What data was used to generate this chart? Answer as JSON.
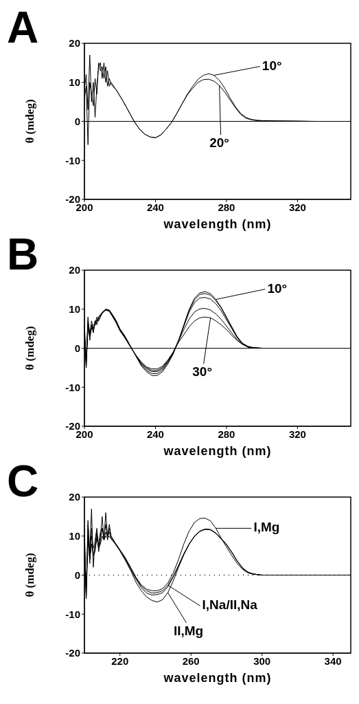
{
  "chart_data": [
    {
      "type": "line",
      "title": "A",
      "xlabel": "wavelength (nm)",
      "ylabel": "θ (mdeg)",
      "xlim": [
        200,
        350
      ],
      "xticks": [
        200,
        240,
        280,
        320
      ],
      "ylim": [
        -20,
        20
      ],
      "yticks": [
        -20,
        -10,
        0,
        10,
        20
      ],
      "x": [
        200,
        201,
        202,
        203,
        204,
        205,
        206,
        207,
        208,
        209,
        210,
        211,
        212,
        213,
        214,
        215,
        218,
        220,
        222,
        225,
        228,
        231,
        234,
        237,
        240,
        243,
        246,
        249,
        252,
        255,
        258,
        261,
        264,
        267,
        270,
        273,
        276,
        279,
        282,
        285,
        288,
        291,
        294,
        297,
        300,
        310,
        320,
        330,
        340,
        350
      ],
      "series": [
        {
          "color": "#000000",
          "values": [
            8,
            12,
            3,
            17,
            5,
            10,
            1,
            9,
            14,
            15,
            11,
            15,
            10,
            13,
            9,
            10,
            8,
            6.5,
            5,
            2.5,
            0,
            -2,
            -3.3,
            -4,
            -4.2,
            -3.5,
            -2,
            -0.3,
            2,
            4.5,
            7,
            9,
            10.8,
            11.8,
            12.2,
            11.8,
            10.5,
            8.5,
            6,
            3.8,
            2,
            1,
            0.5,
            0.3,
            0.2,
            0.1,
            0.1,
            0,
            0,
            0
          ]
        },
        {
          "color": "#000000",
          "values": [
            6,
            9,
            -6,
            10,
            7,
            4,
            11,
            7,
            15,
            13,
            14,
            11,
            14,
            9,
            11,
            9.5,
            8,
            6.5,
            5,
            2.5,
            0,
            -2,
            -3.3,
            -4,
            -4.2,
            -3.5,
            -2,
            -0.3,
            2,
            4.5,
            6.8,
            8.5,
            10,
            10.7,
            10.8,
            10.3,
            9.2,
            7.5,
            5.5,
            3.5,
            1.8,
            0.8,
            0.4,
            0.2,
            0.1,
            0.1,
            0,
            0,
            0,
            0
          ]
        }
      ],
      "ref_lines": [
        {
          "axis": "y",
          "value": 0,
          "line_style": "solid",
          "color": "#000000"
        }
      ],
      "annotations": [
        {
          "text": "10°",
          "x": 273,
          "y": 11.8
        },
        {
          "text": "20°",
          "x": 276,
          "y": 9.2
        }
      ]
    },
    {
      "type": "line",
      "title": "B",
      "xlabel": "wavelength (nm)",
      "ylabel": "θ (mdeg)",
      "xlim": [
        200,
        350
      ],
      "xticks": [
        200,
        240,
        280,
        320
      ],
      "ylim": [
        -20,
        20
      ],
      "yticks": [
        -20,
        -10,
        0,
        10,
        20
      ],
      "x": [
        200,
        201,
        202,
        203,
        204,
        205,
        206,
        207,
        208,
        210,
        212,
        214,
        216,
        218,
        220,
        223,
        226,
        229,
        232,
        235,
        238,
        241,
        244,
        247,
        250,
        253,
        256,
        259,
        262,
        265,
        268,
        271,
        274,
        277,
        280,
        283,
        286,
        289,
        292,
        295,
        300,
        310,
        320,
        330,
        340,
        350
      ],
      "series": [
        {
          "color": "#000000",
          "values": [
            5,
            -4,
            8,
            2,
            6,
            4,
            7,
            6,
            8,
            9,
            10,
            9.8,
            8.5,
            7,
            5,
            3,
            0.5,
            -2,
            -4.5,
            -6,
            -7,
            -7,
            -6,
            -4,
            -1.5,
            2,
            6,
            10,
            12.8,
            14.2,
            14.5,
            14,
            12.5,
            10.5,
            8,
            5.5,
            3,
            1.3,
            0.5,
            0.2,
            0,
            0,
            0,
            0,
            0,
            0
          ]
        },
        {
          "color": "#000000",
          "values": [
            3,
            -3,
            7,
            4,
            5,
            6,
            6,
            7,
            8,
            9.2,
            10,
            9.6,
            8.3,
            6.8,
            4.8,
            2.8,
            0.4,
            -2,
            -4.3,
            -5.7,
            -6.5,
            -6.5,
            -5.6,
            -3.7,
            -1.3,
            2,
            5.8,
            9.7,
            12.4,
            13.8,
            14,
            13.6,
            12.2,
            10.3,
            7.8,
            5.3,
            2.9,
            1.2,
            0.4,
            0.1,
            0,
            0,
            0,
            0,
            0,
            0
          ]
        },
        {
          "color": "#000000",
          "values": [
            4,
            -5,
            6,
            3,
            7,
            5,
            6,
            8,
            7,
            9,
            9.9,
            9.6,
            8.2,
            6.6,
            4.7,
            2.7,
            0.4,
            -1.9,
            -4,
            -5.3,
            -6,
            -6,
            -5.2,
            -3.4,
            -1.1,
            2,
            5.6,
            9.3,
            11.7,
            12.9,
            13,
            12.6,
            11.4,
            9.6,
            7.3,
            5,
            2.7,
            1.1,
            0.4,
            0.1,
            0,
            0,
            0,
            0,
            0,
            0
          ]
        },
        {
          "color": "#000000",
          "values": [
            6,
            -3,
            5,
            4,
            6,
            4,
            7,
            7,
            8,
            9,
            9.8,
            9.5,
            8,
            6.4,
            4.5,
            2.5,
            0.3,
            -1.8,
            -3.8,
            -5,
            -5.7,
            -5.7,
            -4.9,
            -3.2,
            -1,
            1.8,
            4.8,
            7.5,
            9.3,
            10.1,
            10.2,
            9.8,
            8.8,
            7.4,
            5.7,
            3.9,
            2.2,
            1,
            0.3,
            0.1,
            0,
            0,
            0,
            0,
            0,
            0
          ]
        },
        {
          "color": "#000000",
          "values": [
            4,
            -5,
            6,
            3,
            5,
            5,
            6,
            7,
            7.5,
            9,
            9.8,
            9.5,
            8,
            6.5,
            4.5,
            2.5,
            0.3,
            -1.8,
            -3.5,
            -4.8,
            -5.3,
            -5.3,
            -4.6,
            -3,
            -1,
            1.5,
            3.5,
            5.5,
            7,
            7.8,
            8,
            7.8,
            7,
            6,
            4.8,
            3.3,
            2,
            1,
            0.3,
            0,
            0,
            0,
            0,
            0,
            0,
            0
          ]
        }
      ],
      "ref_lines": [
        {
          "axis": "y",
          "value": 0,
          "line_style": "solid",
          "color": "#000000"
        }
      ],
      "annotations": [
        {
          "text": "10°",
          "x": 274,
          "y": 12.5
        },
        {
          "text": "30°",
          "x": 271,
          "y": 7.8
        }
      ]
    },
    {
      "type": "line",
      "title": "C",
      "xlabel": "wavelength (nm)",
      "ylabel": "θ (mdeg)",
      "xlim": [
        200,
        350
      ],
      "xticks": [
        220,
        260,
        300,
        340
      ],
      "ylim": [
        -20,
        20
      ],
      "yticks": [
        -20,
        -10,
        0,
        10,
        20
      ],
      "x": [
        200,
        201,
        202,
        203,
        204,
        205,
        206,
        207,
        208,
        209,
        210,
        211,
        212,
        213,
        214,
        215,
        217,
        220,
        223,
        226,
        229,
        232,
        235,
        238,
        241,
        244,
        247,
        250,
        253,
        256,
        259,
        262,
        265,
        268,
        271,
        274,
        277,
        280,
        283,
        286,
        289,
        292,
        295,
        298,
        300,
        310,
        320,
        330,
        340,
        350
      ],
      "series": [
        {
          "color": "#000000",
          "values": [
            12,
            -5,
            14,
            6,
            17,
            2,
            9,
            12,
            7,
            10,
            15,
            9,
            16,
            10,
            13,
            10,
            8.5,
            6.5,
            4.5,
            2,
            -0.5,
            -2.5,
            -3.6,
            -4,
            -4,
            -3.5,
            -2,
            0.5,
            4,
            8,
            11.3,
            13.5,
            14.5,
            14.6,
            13.9,
            12,
            9.5,
            7.2,
            5,
            3,
            1.5,
            0.6,
            0.2,
            0.1,
            0,
            0,
            0,
            0,
            0,
            0
          ]
        },
        {
          "color": "#000000",
          "values": [
            8,
            -3,
            10,
            4,
            12,
            5,
            7,
            9,
            8,
            11,
            12,
            9,
            11,
            10,
            11,
            9.5,
            8.3,
            6.3,
            4.2,
            1.8,
            -0.8,
            -2.8,
            -4,
            -4.6,
            -4.5,
            -4,
            -2.6,
            -0.3,
            2.5,
            5.5,
            8,
            10,
            11.3,
            11.8,
            11.6,
            10.7,
            9.3,
            7.8,
            5.8,
            3.6,
            1.8,
            0.7,
            0.3,
            0.1,
            0,
            0,
            0,
            0,
            0,
            0
          ]
        },
        {
          "color": "#000000",
          "values": [
            10,
            -6,
            13,
            3,
            10,
            7,
            8,
            11,
            6,
            9,
            12,
            10,
            13,
            9,
            12,
            10,
            8.4,
            6.3,
            4.1,
            1.6,
            -1,
            -3.2,
            -4.6,
            -5.1,
            -5,
            -4.5,
            -3,
            -0.5,
            2.3,
            5.4,
            8,
            10,
            11.2,
            11.8,
            11.7,
            10.8,
            9.4,
            7.9,
            5.9,
            3.7,
            1.9,
            0.8,
            0.3,
            0.1,
            0,
            0,
            0,
            0,
            0,
            0
          ]
        },
        {
          "color": "#000000",
          "values": [
            6,
            -6,
            9,
            4,
            8,
            5,
            6,
            10,
            7,
            8,
            10,
            9,
            10,
            9.5,
            10,
            9.3,
            8.2,
            6.2,
            3.8,
            1.2,
            -1.8,
            -4,
            -5.6,
            -6.5,
            -6.9,
            -6.3,
            -4.5,
            -1.5,
            2,
            5.2,
            7.9,
            9.9,
            11.2,
            11.7,
            11.6,
            10.7,
            9.3,
            7.8,
            5.8,
            3.6,
            1.8,
            0.7,
            0.3,
            0.1,
            0,
            0,
            0,
            0,
            0,
            0
          ]
        }
      ],
      "ref_lines": [
        {
          "axis": "y",
          "value": 0,
          "line_style": "dotted",
          "color": "#000000"
        }
      ],
      "annotations": [
        {
          "text": "I,Mg",
          "x": 274,
          "y": 12
        },
        {
          "text": "I,Na/II,Na",
          "x": 247,
          "y": -2.6
        },
        {
          "text": "II,Mg",
          "x": 247,
          "y": -4.5
        }
      ]
    }
  ]
}
